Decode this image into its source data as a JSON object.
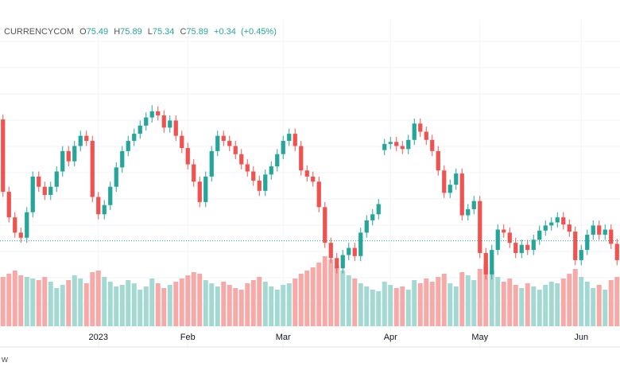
{
  "chart_data": {
    "type": "candlestick",
    "header": {
      "source": "CURRENCYCOM",
      "open_label": "O",
      "open": "75.49",
      "high_label": "H",
      "high": "75.89",
      "low_label": "L",
      "low": "75.34",
      "close_label": "C",
      "close": "75.89",
      "change": "+0.34",
      "change_pct": "(+0.45%)"
    },
    "footer": "w",
    "categories": [
      null,
      null,
      null,
      null,
      null,
      null,
      null,
      null,
      null,
      null,
      null,
      null,
      null,
      null,
      null,
      null,
      "2023",
      null,
      null,
      null,
      null,
      null,
      null,
      null,
      null,
      null,
      null,
      null,
      null,
      null,
      null,
      "Feb",
      null,
      null,
      null,
      null,
      null,
      null,
      null,
      null,
      null,
      null,
      null,
      null,
      null,
      null,
      null,
      "Mar",
      null,
      null,
      null,
      null,
      null,
      null,
      null,
      null,
      null,
      null,
      null,
      null,
      null,
      null,
      null,
      null,
      null,
      "Apr",
      null,
      null,
      null,
      null,
      null,
      null,
      null,
      null,
      null,
      null,
      null,
      null,
      null,
      null,
      "May",
      null,
      null,
      null,
      null,
      null,
      null,
      null,
      null,
      null,
      null,
      null,
      null,
      null,
      null,
      null,
      null,
      "Jun",
      null,
      null,
      null,
      null,
      null,
      null
    ],
    "open": [
      80.6,
      73.5,
      71,
      69.5,
      69,
      71.5,
      75,
      74,
      73.2,
      74,
      75.5,
      77.5,
      76.5,
      78,
      79,
      78.5,
      73,
      71.3,
      72.2,
      74,
      75.9,
      77.5,
      78.5,
      79.2,
      80,
      80.8,
      81.4,
      81,
      79.8,
      80.5,
      79,
      77.8,
      76.2,
      74.5,
      72.5,
      75,
      77.5,
      79,
      78.5,
      78,
      77.2,
      76.2,
      75.5,
      74.6,
      73.6,
      75.2,
      76,
      77.2,
      78.5,
      79.2,
      78,
      75.6,
      75,
      74.5,
      72,
      68.5,
      67,
      66,
      67.3,
      68,
      67.2,
      69.5,
      70.7,
      71.3,
      77.6,
      78.2,
      78.4,
      78,
      77.7,
      78.6,
      80.2,
      79.4,
      78.6,
      77.5,
      75.6,
      73.4,
      74.2,
      75.3,
      71.2,
      71.8,
      72.6,
      67.5,
      65.4,
      67.8,
      69.8,
      69.5,
      68.5,
      67.5,
      68.3,
      67.8,
      68.8,
      69.7,
      70.2,
      70.5,
      71,
      70.3,
      69.6,
      66.8,
      67.8,
      69.3,
      70.2,
      69.3,
      69.8,
      68.4
    ],
    "high": [
      81.1,
      74,
      71.5,
      70,
      72,
      75.5,
      75.5,
      74.5,
      74.5,
      76,
      78,
      78,
      78.5,
      79.5,
      79.5,
      79,
      73.5,
      72.7,
      74.5,
      76.4,
      78,
      79,
      79.7,
      80.5,
      81.3,
      82,
      81.9,
      81.5,
      81,
      81,
      79.5,
      78.3,
      76.7,
      75,
      75.5,
      78,
      79.5,
      79.5,
      79,
      78.5,
      77.7,
      76.7,
      76,
      75.1,
      75.7,
      76.5,
      77.7,
      79,
      79.7,
      79.7,
      78.5,
      76.1,
      75.5,
      75,
      72.5,
      69,
      67.5,
      67.8,
      68.5,
      68.5,
      70,
      71.2,
      71.8,
      72.8,
      78.7,
      78.9,
      78.9,
      78.5,
      79.1,
      80.7,
      80.7,
      79.9,
      79.1,
      78,
      76.1,
      74.7,
      75.8,
      75.8,
      72.3,
      73.1,
      73.1,
      68,
      68.3,
      70.3,
      70.3,
      70,
      69,
      68.8,
      68.8,
      69.3,
      70.2,
      70.7,
      71,
      71.5,
      71.5,
      70.8,
      70.1,
      68.3,
      69.8,
      70.7,
      70.7,
      70.3,
      70.3,
      68.9
    ],
    "low": [
      73,
      70.5,
      69,
      68.5,
      68.5,
      71,
      73.5,
      72.7,
      72.7,
      73.5,
      75,
      76,
      76,
      77.5,
      78,
      72.5,
      70.8,
      70.8,
      71.7,
      73.5,
      75.4,
      77,
      78,
      78.7,
      79.5,
      80.3,
      80.5,
      79.3,
      79.3,
      78.5,
      77.3,
      75.7,
      74,
      72,
      72,
      74.5,
      77,
      78,
      77.5,
      76.7,
      75.7,
      75,
      74.1,
      73.1,
      73.1,
      74.7,
      75.5,
      76.7,
      78,
      77.5,
      75.1,
      74.5,
      74,
      71.5,
      68,
      66.5,
      65.5,
      65.5,
      66.8,
      66.7,
      66.7,
      69,
      70.2,
      70.8,
      77.1,
      77.7,
      77.5,
      77.2,
      77.2,
      78.1,
      78.9,
      78.1,
      77,
      75.1,
      72.9,
      72.9,
      73.7,
      70.7,
      70.7,
      71.3,
      67,
      64.9,
      64.9,
      67.3,
      69,
      68,
      67,
      67,
      67.3,
      67.3,
      68.3,
      69.2,
      69.7,
      70,
      69.8,
      69.1,
      66.3,
      66.3,
      67.3,
      68.8,
      68.8,
      68.8,
      67.9,
      66.3
    ],
    "close": [
      73.5,
      71,
      69.5,
      69,
      71.5,
      75,
      74,
      73.2,
      74,
      75.5,
      77.5,
      76.5,
      78,
      79,
      78.5,
      73,
      71.3,
      72.2,
      74,
      75.9,
      77.5,
      78.5,
      79.2,
      80,
      80.8,
      81.4,
      81,
      79.8,
      80.5,
      79,
      77.8,
      76.2,
      74.5,
      72.5,
      75,
      77.5,
      79,
      78.5,
      78,
      77.2,
      76.2,
      75.5,
      74.6,
      73.6,
      75.2,
      76,
      77.2,
      78.5,
      79.2,
      78,
      75.6,
      75,
      74.5,
      72,
      68.5,
      67,
      66,
      67.3,
      68,
      67.2,
      69.5,
      70.7,
      71.3,
      72.3,
      78.2,
      78.4,
      78,
      77.7,
      78.6,
      80.2,
      79.4,
      78.6,
      77.5,
      75.6,
      73.4,
      74.2,
      75.3,
      71.2,
      71.8,
      72.6,
      67.5,
      65.4,
      67.8,
      69.8,
      69.5,
      68.5,
      67.5,
      68.3,
      67.8,
      68.8,
      69.7,
      70.2,
      70.5,
      71,
      70.3,
      69.6,
      66.8,
      67.8,
      69.3,
      70.2,
      69.3,
      69.8,
      68.4,
      66.8
    ],
    "volume": [
      62,
      66,
      70,
      64,
      62,
      60,
      58,
      62,
      56,
      48,
      52,
      58,
      64,
      60,
      54,
      68,
      70,
      62,
      56,
      50,
      52,
      58,
      54,
      46,
      50,
      60,
      54,
      48,
      52,
      56,
      60,
      64,
      68,
      66,
      58,
      54,
      50,
      56,
      52,
      48,
      46,
      54,
      58,
      62,
      56,
      50,
      46,
      52,
      54,
      60,
      66,
      70,
      74,
      80,
      88,
      84,
      76,
      70,
      64,
      60,
      54,
      50,
      46,
      44,
      56,
      52,
      48,
      50,
      46,
      58,
      54,
      60,
      56,
      62,
      66,
      54,
      50,
      68,
      64,
      58,
      72,
      78,
      70,
      62,
      56,
      60,
      52,
      48,
      54,
      50,
      46,
      52,
      56,
      54,
      60,
      66,
      72,
      62,
      56,
      48,
      52,
      46,
      58,
      62
    ],
    "price_line": 68.7,
    "ylim": [
      62.5,
      86
    ],
    "y2lim": [
      0,
      100
    ],
    "grid": true,
    "up_color": "#26a69a",
    "down_color": "#ef5350",
    "volume_up_color": "#a3d9d2",
    "volume_down_color": "#f7a9a7"
  }
}
